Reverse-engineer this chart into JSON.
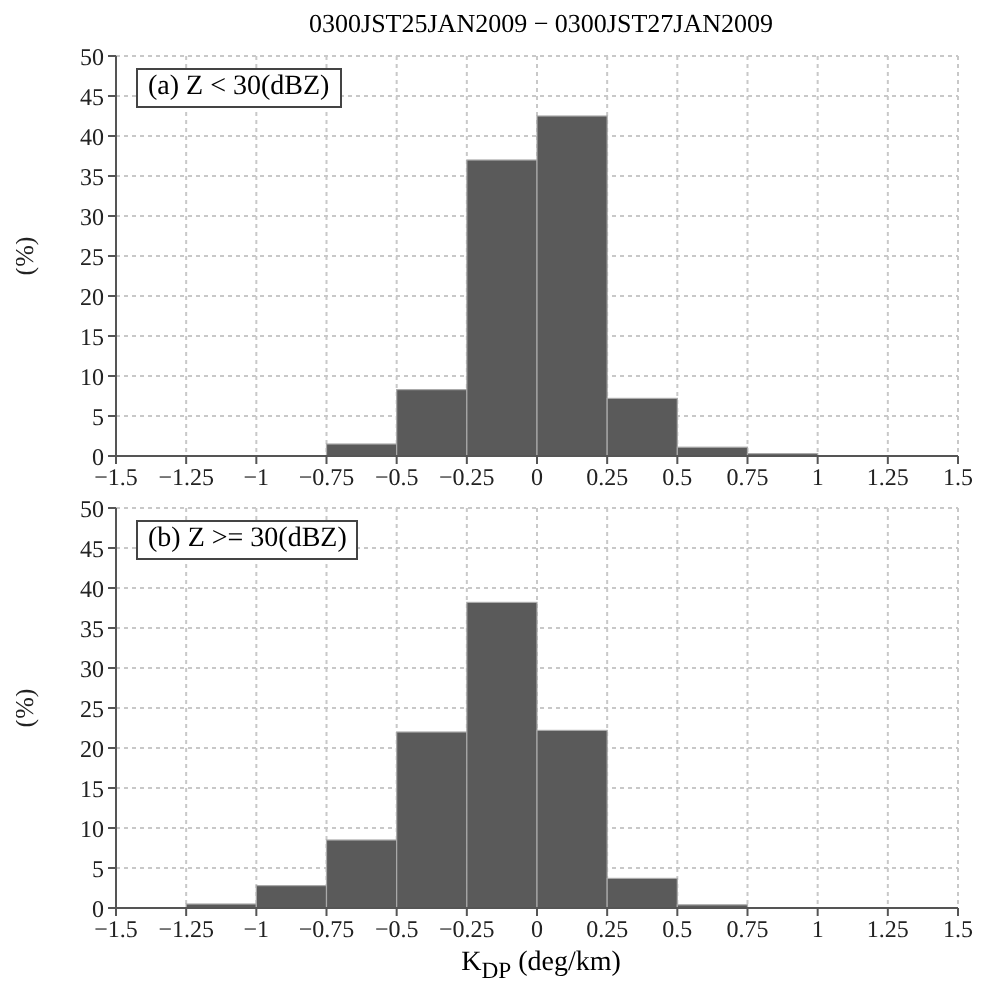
{
  "chart_data": [
    {
      "type": "histogram",
      "title": "0300JST25JAN2009 − 0300JST27JAN2009",
      "ylabel": "(%)",
      "annotations": [
        "(a) Z < 30(dBZ)"
      ],
      "bins": [
        -1.5,
        -1.25,
        -1,
        -0.75,
        -0.5,
        -0.25,
        0,
        0.25,
        0.5,
        0.75,
        1,
        1.25,
        1.5
      ],
      "values": [
        0,
        0,
        0,
        1.5,
        8.3,
        37,
        42.5,
        7.2,
        1.1,
        0.3,
        0,
        0
      ],
      "color": "#5a5a5a",
      "xlim": [
        -1.5,
        1.5
      ],
      "xticks": [
        -1.5,
        -1.25,
        -1,
        -0.75,
        -0.5,
        -0.25,
        0,
        0.25,
        0.5,
        0.75,
        1,
        1.25,
        1.5
      ],
      "ylim": [
        0,
        50
      ],
      "yticks": [
        0,
        5,
        10,
        15,
        20,
        25,
        30,
        35,
        40,
        45,
        50
      ],
      "grid": true
    },
    {
      "type": "histogram",
      "xlabel": "K$_{DP}$ (deg/km)",
      "ylabel": "(%)",
      "annotations": [
        "(b) Z >= 30(dBZ)"
      ],
      "bins": [
        -1.5,
        -1.25,
        -1,
        -0.75,
        -0.5,
        -0.25,
        0,
        0.25,
        0.5,
        0.75,
        1,
        1.25,
        1.5
      ],
      "values": [
        0,
        0.5,
        2.8,
        8.5,
        22,
        38.2,
        22.2,
        3.7,
        0.4,
        0,
        0,
        0
      ],
      "color": "#5a5a5a",
      "xlim": [
        -1.5,
        1.5
      ],
      "xticks": [
        -1.5,
        -1.25,
        -1,
        -0.75,
        -0.5,
        -0.25,
        0,
        0.25,
        0.5,
        0.75,
        1,
        1.25,
        1.5
      ],
      "ylim": [
        0,
        50
      ],
      "yticks": [
        0,
        5,
        10,
        15,
        20,
        25,
        30,
        35,
        40,
        45,
        50
      ],
      "grid": true
    }
  ]
}
